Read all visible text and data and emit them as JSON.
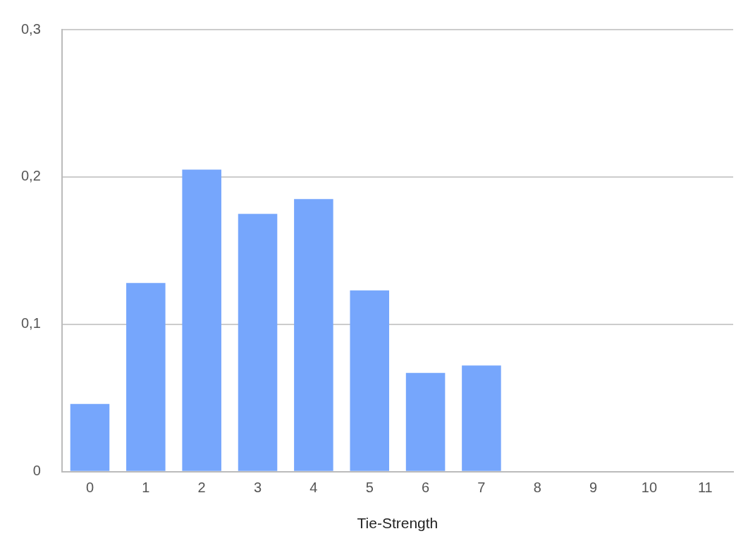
{
  "chart_data": {
    "type": "bar",
    "xlabel": "Tie-Strength",
    "categories": [
      "0",
      "1",
      "2",
      "3",
      "4",
      "5",
      "6",
      "7",
      "8",
      "9",
      "10",
      "11"
    ],
    "values": [
      0.046,
      0.128,
      0.205,
      0.175,
      0.185,
      0.123,
      0.067,
      0.072,
      0,
      0,
      0,
      0
    ],
    "color": "#76a6fc",
    "ylim": [
      0,
      0.3
    ],
    "yticks": [
      0,
      {
        "value": 0.1,
        "label": "0,1"
      },
      {
        "value": 0.2,
        "label": "0,2"
      },
      {
        "value": 0.3,
        "label": "0,3"
      }
    ],
    "grid": "y",
    "legend": false
  }
}
